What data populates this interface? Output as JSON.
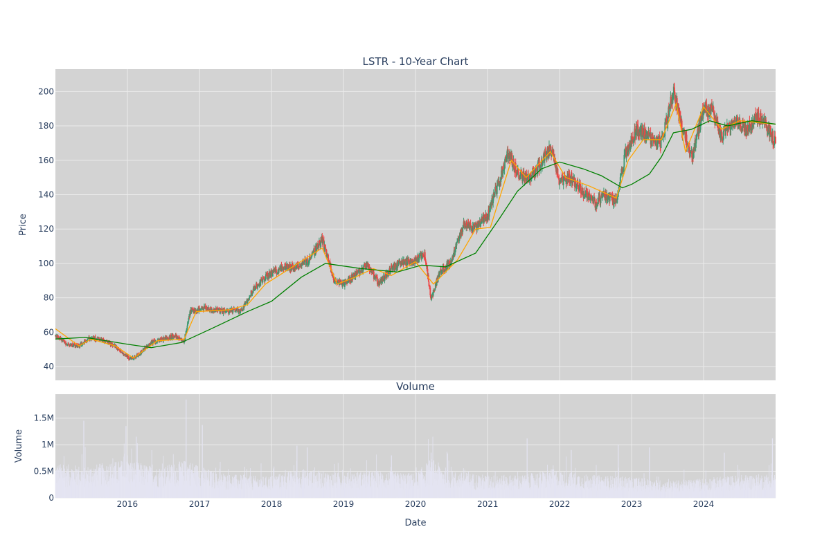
{
  "chart_data": {
    "type": "line",
    "title": "LSTR - 10-Year Chart",
    "xlabel": "Date",
    "x_range": [
      "2015-01-01",
      "2024-12-31"
    ],
    "x_ticks": [
      "2016",
      "2017",
      "2018",
      "2019",
      "2020",
      "2021",
      "2022",
      "2023",
      "2024"
    ],
    "background": "#d3d3d3",
    "grid": true,
    "price_panel": {
      "type": "candlestick",
      "ylabel": "Price",
      "ylim": [
        32,
        213
      ],
      "y_ticks": [
        40,
        60,
        80,
        100,
        120,
        140,
        160,
        180,
        200
      ],
      "increasing_color": "#3d9970",
      "decreasing_color": "#ef4444",
      "close_series": {
        "dates": [
          "2015-01-01",
          "2015-03-01",
          "2015-05-01",
          "2015-07-01",
          "2015-09-01",
          "2015-11-01",
          "2016-01-15",
          "2016-03-01",
          "2016-05-01",
          "2016-07-01",
          "2016-09-01",
          "2016-10-15",
          "2016-11-15",
          "2017-02-01",
          "2017-05-01",
          "2017-08-01",
          "2017-10-01",
          "2017-12-01",
          "2018-03-01",
          "2018-05-01",
          "2018-07-01",
          "2018-09-15",
          "2018-11-15",
          "2019-01-01",
          "2019-03-01",
          "2019-05-01",
          "2019-07-01",
          "2019-09-01",
          "2019-11-01",
          "2020-01-01",
          "2020-02-15",
          "2020-03-20",
          "2020-05-01",
          "2020-07-01",
          "2020-09-01",
          "2020-11-01",
          "2021-01-01",
          "2021-03-01",
          "2021-04-15",
          "2021-06-01",
          "2021-08-01",
          "2021-10-01",
          "2021-11-15",
          "2022-01-01",
          "2022-03-01",
          "2022-05-01",
          "2022-07-01",
          "2022-08-15",
          "2022-10-15",
          "2022-12-01",
          "2023-02-01",
          "2023-04-01",
          "2023-06-01",
          "2023-08-01",
          "2023-09-15",
          "2023-11-01",
          "2024-01-01",
          "2024-02-15",
          "2024-04-01",
          "2024-06-01",
          "2024-08-01",
          "2024-10-01",
          "2024-12-31"
        ],
        "values": [
          58,
          53,
          52,
          57,
          55,
          52,
          44,
          47,
          54,
          56,
          58,
          55,
          72,
          74,
          72,
          73,
          85,
          92,
          98,
          98,
          101,
          114,
          90,
          88,
          93,
          99,
          88,
          97,
          101,
          101,
          106,
          80,
          94,
          102,
          122,
          121,
          128,
          148,
          165,
          152,
          150,
          158,
          167,
          148,
          150,
          141,
          135,
          140,
          136,
          165,
          178,
          173,
          170,
          200,
          178,
          162,
          190,
          188,
          173,
          183,
          178,
          186,
          171
        ]
      },
      "ma_short": {
        "name": "",
        "color": "#ffa500",
        "dates": [
          "2015-01-01",
          "2015-05-01",
          "2015-07-01",
          "2015-11-01",
          "2016-02-01",
          "2016-06-01",
          "2016-10-15",
          "2016-12-15",
          "2017-06-01",
          "2017-09-01",
          "2017-12-01",
          "2018-05-01",
          "2018-09-15",
          "2018-11-30",
          "2019-03-01",
          "2019-06-01",
          "2019-09-01",
          "2020-01-01",
          "2020-04-01",
          "2020-08-01",
          "2020-11-01",
          "2021-01-15",
          "2021-05-01",
          "2021-07-15",
          "2021-11-15",
          "2022-02-01",
          "2022-06-01",
          "2022-10-15",
          "2022-12-15",
          "2023-03-01",
          "2023-06-01",
          "2023-08-15",
          "2023-10-01",
          "2024-01-01",
          "2024-04-01",
          "2024-07-01",
          "2024-12-31"
        ],
        "values": [
          62,
          52,
          56,
          52,
          45,
          55,
          56,
          72,
          73,
          76,
          88,
          99,
          109,
          88,
          92,
          97,
          93,
          101,
          88,
          102,
          120,
          121,
          160,
          150,
          165,
          150,
          145,
          138,
          160,
          172,
          172,
          193,
          165,
          191,
          178,
          183,
          181
        ]
      },
      "ma_long": {
        "name": "",
        "color": "#008000",
        "dates": [
          "2015-01-01",
          "2015-06-01",
          "2016-01-01",
          "2016-05-01",
          "2016-10-01",
          "2017-03-01",
          "2017-09-01",
          "2018-01-01",
          "2018-06-01",
          "2018-10-01",
          "2019-04-01",
          "2019-10-01",
          "2020-02-01",
          "2020-06-01",
          "2020-11-01",
          "2021-03-01",
          "2021-06-01",
          "2021-10-01",
          "2022-01-01",
          "2022-05-01",
          "2022-08-01",
          "2022-11-15",
          "2023-01-01",
          "2023-04-01",
          "2023-06-01",
          "2023-08-01",
          "2023-11-01",
          "2024-02-01",
          "2024-05-01",
          "2024-09-01",
          "2024-12-31"
        ],
        "values": [
          56,
          57,
          53,
          51,
          54,
          62,
          72,
          78,
          92,
          100,
          97,
          95,
          99,
          98,
          106,
          126,
          142,
          155,
          159,
          155,
          151,
          144,
          146,
          152,
          162,
          176,
          178,
          183,
          180,
          183,
          181
        ]
      }
    },
    "volume_panel": {
      "type": "bar",
      "title": "Volume",
      "ylabel": "Volume",
      "ylim": [
        0,
        1.95
      ],
      "y_ticks": [
        0,
        0.5,
        1,
        1.5
      ],
      "y_tick_labels": [
        "0",
        "0.5M",
        "1M",
        "1.5M"
      ],
      "unit": "M",
      "bar_color": "#e4e4f2",
      "bar_opacity": 0.9,
      "level_dates": [
        "2015-01-01",
        "2015-06-01",
        "2016-01-01",
        "2016-06-01",
        "2016-11-01",
        "2017-04-01",
        "2017-12-01",
        "2018-06-01",
        "2018-12-01",
        "2019-06-01",
        "2020-01-01",
        "2020-03-20",
        "2020-07-01",
        "2021-01-01",
        "2021-07-01",
        "2021-12-01",
        "2022-06-01",
        "2023-01-01",
        "2023-07-01",
        "2024-01-01",
        "2024-07-01",
        "2024-12-31"
      ],
      "level_values": [
        0.45,
        0.42,
        0.5,
        0.4,
        0.5,
        0.32,
        0.28,
        0.38,
        0.33,
        0.36,
        0.32,
        0.52,
        0.35,
        0.3,
        0.3,
        0.38,
        0.3,
        0.28,
        0.22,
        0.26,
        0.3,
        0.32
      ],
      "spikes": [
        {
          "date": "2015-05-25",
          "value": 1.45
        },
        {
          "date": "2016-02-15",
          "value": 1.15
        },
        {
          "date": "2015-12-25",
          "value": 1.35
        },
        {
          "date": "2016-10-25",
          "value": 1.85
        },
        {
          "date": "2017-01-15",
          "value": 1.37
        },
        {
          "date": "2018-05-10",
          "value": 0.98
        },
        {
          "date": "2018-07-01",
          "value": 0.95
        },
        {
          "date": "2019-09-01",
          "value": 0.8
        },
        {
          "date": "2020-03-20",
          "value": 0.85
        },
        {
          "date": "2021-07-20",
          "value": 1.12
        },
        {
          "date": "2022-03-01",
          "value": 0.9
        },
        {
          "date": "2022-10-25",
          "value": 1.0
        },
        {
          "date": "2023-04-01",
          "value": 0.95
        },
        {
          "date": "2024-04-15",
          "value": 0.85
        },
        {
          "date": "2024-12-15",
          "value": 1.12
        }
      ]
    }
  }
}
